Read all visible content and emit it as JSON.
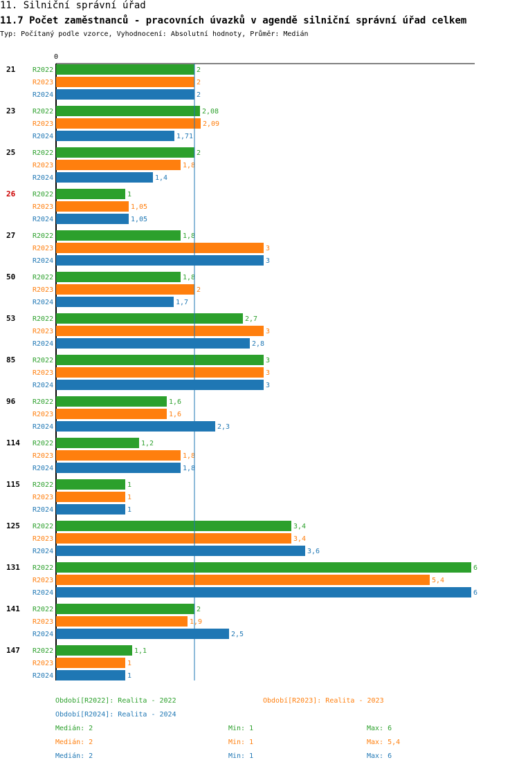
{
  "heading": "11. Silniční správní úřad",
  "chart_data": {
    "type": "bar",
    "orientation": "horizontal",
    "title": "11.7 Počet zaměstnanců - pracovních úvazků v agendě silniční správní úřad celkem",
    "subtitle": "Typ: Počítaný podle vzorce, Vyhodnocení: Absolutní hodnoty, Průměr: Medián",
    "axis_zero_label": "0",
    "xlim": [
      0,
      6
    ],
    "median_line": 2,
    "categories": [
      "21",
      "23",
      "25",
      "26",
      "27",
      "50",
      "53",
      "85",
      "96",
      "114",
      "115",
      "125",
      "131",
      "141",
      "147"
    ],
    "highlight_category": "26",
    "series": [
      {
        "name": "R2022",
        "color": "#2ca02c",
        "values": [
          2,
          2.08,
          2,
          1,
          1.8,
          1.8,
          2.7,
          3,
          1.6,
          1.2,
          1,
          3.4,
          6,
          2,
          1.1
        ],
        "labels": [
          "2",
          "2,08",
          "2",
          "1",
          "1,8",
          "1,8",
          "2,7",
          "3",
          "1,6",
          "1,2",
          "1",
          "3,4",
          "6",
          "2",
          "1,1"
        ]
      },
      {
        "name": "R2023",
        "color": "#ff7f0e",
        "values": [
          2,
          2.09,
          1.8,
          1.05,
          3,
          2,
          3,
          3,
          1.6,
          1.8,
          1,
          3.4,
          5.4,
          1.9,
          1
        ],
        "labels": [
          "2",
          "2,09",
          "1,8",
          "1,05",
          "3",
          "2",
          "3",
          "3",
          "1,6",
          "1,8",
          "1",
          "3,4",
          "5,4",
          "1,9",
          "1"
        ]
      },
      {
        "name": "R2024",
        "color": "#1f77b4",
        "values": [
          2,
          1.71,
          1.4,
          1.05,
          3,
          1.7,
          2.8,
          3,
          2.3,
          1.8,
          1,
          3.6,
          6,
          2.5,
          1
        ],
        "labels": [
          "2",
          "1,71",
          "1,4",
          "1,05",
          "3",
          "1,7",
          "2,8",
          "3",
          "2,3",
          "1,8",
          "1",
          "3,6",
          "6",
          "2,5",
          "1"
        ]
      }
    ]
  },
  "legend": {
    "periods": [
      {
        "text": "Období[R2022]: Realita - 2022",
        "color": "#2ca02c"
      },
      {
        "text": "Období[R2023]: Realita - 2023",
        "color": "#ff7f0e"
      },
      {
        "text": "Období[R2024]: Realita - 2024",
        "color": "#1f77b4"
      }
    ],
    "stats": [
      {
        "median": "Medián: 2",
        "min": "Min: 1",
        "max": "Max: 6",
        "color": "#2ca02c"
      },
      {
        "median": "Medián: 2",
        "min": "Min: 1",
        "max": "Max: 5,4",
        "color": "#ff7f0e"
      },
      {
        "median": "Medián: 2",
        "min": "Min: 1",
        "max": "Max: 6",
        "color": "#1f77b4"
      }
    ]
  }
}
